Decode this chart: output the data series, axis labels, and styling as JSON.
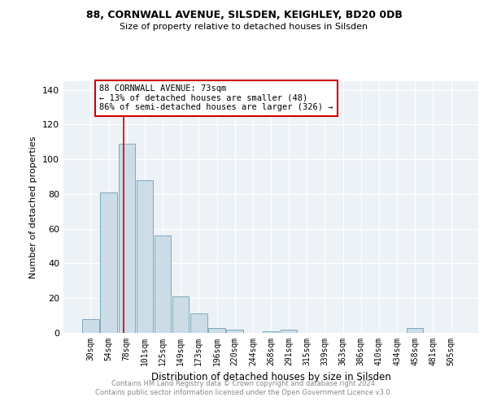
{
  "title1": "88, CORNWALL AVENUE, SILSDEN, KEIGHLEY, BD20 0DB",
  "title2": "Size of property relative to detached houses in Silsden",
  "xlabel": "Distribution of detached houses by size in Silsden",
  "ylabel": "Number of detached properties",
  "bar_values": [
    8,
    81,
    109,
    88,
    56,
    21,
    11,
    3,
    2,
    0,
    1,
    2,
    0,
    0,
    0,
    0,
    0,
    0,
    3,
    0,
    0
  ],
  "bar_labels": [
    "30sqm",
    "54sqm",
    "78sqm",
    "101sqm",
    "125sqm",
    "149sqm",
    "173sqm",
    "196sqm",
    "220sqm",
    "244sqm",
    "268sqm",
    "291sqm",
    "315sqm",
    "339sqm",
    "363sqm",
    "386sqm",
    "410sqm",
    "434sqm",
    "458sqm",
    "481sqm",
    "505sqm"
  ],
  "bar_color": "#ccdde8",
  "bar_edge_color": "#7aaabb",
  "ylim": [
    0,
    145
  ],
  "yticks": [
    0,
    20,
    40,
    60,
    80,
    100,
    120,
    140
  ],
  "property_line_x": 1.82,
  "annotation_line1": "88 CORNWALL AVENUE: 73sqm",
  "annotation_line2": "← 13% of detached houses are smaller (48)",
  "annotation_line3": "86% of semi-detached houses are larger (326) →",
  "annotation_box_color": "#cc0000",
  "background_color": "#edf2f7",
  "footer_line1": "Contains HM Land Registry data © Crown copyright and database right 2024.",
  "footer_line2": "Contains public sector information licensed under the Open Government Licence v3.0."
}
